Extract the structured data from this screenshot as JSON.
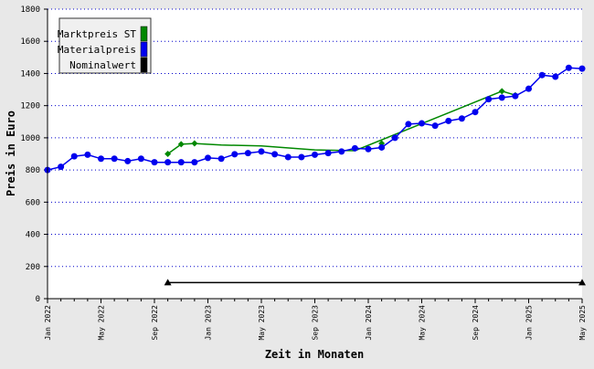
{
  "chart_data": {
    "type": "line",
    "title": "",
    "xlabel": "Zeit in Monaten",
    "ylabel": "Preis in Euro",
    "ylim": [
      0,
      1800
    ],
    "yticks": [
      0,
      200,
      400,
      600,
      800,
      1000,
      1200,
      1400,
      1600,
      1800
    ],
    "x_start": "2022-01",
    "xtick_labels": [
      {
        "month_index": 0,
        "label": "Jan 2022"
      },
      {
        "month_index": 4,
        "label": "May 2022"
      },
      {
        "month_index": 8,
        "label": "Sep 2022"
      },
      {
        "month_index": 12,
        "label": "Jan 2023"
      },
      {
        "month_index": 16,
        "label": "May 2023"
      },
      {
        "month_index": 20,
        "label": "Sep 2023"
      },
      {
        "month_index": 24,
        "label": "Jan 2024"
      },
      {
        "month_index": 28,
        "label": "May 2024"
      },
      {
        "month_index": 32,
        "label": "Sep 2024"
      },
      {
        "month_index": 36,
        "label": "Jan 2025"
      },
      {
        "month_index": 40,
        "label": "May 2025"
      }
    ],
    "grid": "horizontal-dotted",
    "legend_position": "top-left",
    "series": [
      {
        "name": "Marktpreis ST",
        "color": "#008800",
        "marker": "diamond",
        "points": [
          [
            9,
            900
          ],
          [
            10,
            960
          ],
          [
            11,
            965
          ],
          [
            25,
            965
          ],
          [
            34,
            1290
          ],
          [
            35,
            1265
          ]
        ],
        "line_points": [
          [
            9,
            900
          ],
          [
            10,
            960
          ],
          [
            11,
            965
          ],
          [
            13,
            955
          ],
          [
            16,
            950
          ],
          [
            20,
            925
          ],
          [
            23,
            920
          ],
          [
            34,
            1290
          ],
          [
            35,
            1265
          ]
        ]
      },
      {
        "name": "Materialpreis",
        "color": "#0000ee",
        "marker": "circle",
        "points": [
          [
            0,
            800
          ],
          [
            1,
            820
          ],
          [
            2,
            885
          ],
          [
            3,
            895
          ],
          [
            4,
            870
          ],
          [
            5,
            870
          ],
          [
            6,
            855
          ],
          [
            7,
            870
          ],
          [
            8,
            848
          ],
          [
            9,
            848
          ],
          [
            10,
            848
          ],
          [
            11,
            848
          ],
          [
            12,
            875
          ],
          [
            13,
            870
          ],
          [
            14,
            898
          ],
          [
            15,
            905
          ],
          [
            16,
            915
          ],
          [
            17,
            898
          ],
          [
            18,
            880
          ],
          [
            19,
            880
          ],
          [
            20,
            895
          ],
          [
            21,
            905
          ],
          [
            22,
            915
          ],
          [
            23,
            935
          ],
          [
            24,
            930
          ],
          [
            25,
            940
          ],
          [
            26,
            1000
          ],
          [
            27,
            1085
          ],
          [
            28,
            1090
          ],
          [
            29,
            1075
          ],
          [
            30,
            1105
          ],
          [
            31,
            1120
          ],
          [
            32,
            1160
          ],
          [
            33,
            1240
          ],
          [
            34,
            1250
          ],
          [
            35,
            1260
          ],
          [
            36,
            1305
          ],
          [
            37,
            1390
          ],
          [
            38,
            1380
          ],
          [
            39,
            1435
          ],
          [
            40,
            1430
          ]
        ]
      },
      {
        "name": "Nominalwert",
        "color": "#000000",
        "marker": "triangle",
        "points": [
          [
            9,
            100
          ],
          [
            40,
            100
          ]
        ]
      }
    ]
  }
}
